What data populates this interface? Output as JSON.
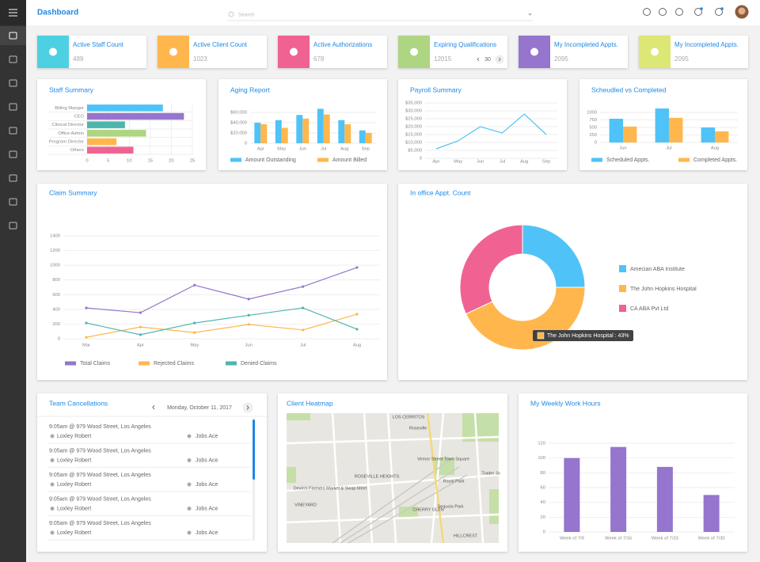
{
  "header": {
    "title": "Dashboard",
    "search_placeholder": "Search"
  },
  "kpis": [
    {
      "label": "Active Staff Count",
      "value": 489,
      "color": "#4dd0e1"
    },
    {
      "label": "Active Client Count",
      "value": 1023,
      "color": "#ffb74d"
    },
    {
      "label": "Active Authorizations",
      "value": 678,
      "color": "#f06292"
    },
    {
      "label": "Expiring Qualifications",
      "value": 12015,
      "color": "#aed581",
      "page": 30
    },
    {
      "label": "My Incompleted Appts.",
      "value": 2095,
      "color": "#9575cd"
    },
    {
      "label": "My Incompleted Appts.",
      "value": 2095,
      "color": "#dce775"
    }
  ],
  "chart_data": [
    {
      "type": "bar",
      "orientation": "horizontal",
      "title": "Staff Summary",
      "categories": [
        "Billing Manger",
        "CEO",
        "Clinical Director",
        "Office Admin",
        "Program Director",
        "Others"
      ],
      "values": [
        18,
        23,
        9,
        14,
        7,
        11
      ],
      "colors": [
        "#4fc3f7",
        "#9575cd",
        "#4db6ac",
        "#aed581",
        "#ffb74d",
        "#f06292"
      ],
      "xlim": [
        0,
        25
      ],
      "xticks": [
        0,
        5,
        10,
        15,
        20,
        25
      ],
      "grid": true
    },
    {
      "type": "bar",
      "title": "Aging Report",
      "categories": [
        "Apr",
        "May",
        "Jun",
        "Jul",
        "Aug",
        "Sep"
      ],
      "series": [
        {
          "name": "Amount Outstanding",
          "color": "#4fc3f7",
          "values": [
            40000,
            45000,
            55000,
            67000,
            45000,
            25000
          ]
        },
        {
          "name": "Amount Billed",
          "color": "#ffb74d",
          "values": [
            37000,
            30000,
            48000,
            56000,
            37000,
            20000
          ]
        }
      ],
      "ylim": [
        0,
        80000
      ],
      "yticks": [
        0,
        {
          "value": 20000,
          "label": "$20,000"
        },
        {
          "value": 40000,
          "label": "$40,000"
        },
        {
          "value": 60000,
          "label": "$60,000"
        }
      ],
      "grid": true
    },
    {
      "type": "line",
      "title": "Payroll Summary",
      "categories": [
        "Apr",
        "May",
        "Jun",
        "Jul",
        "Aug",
        "Sep"
      ],
      "values": [
        6000,
        11000,
        20000,
        16000,
        28000,
        15000
      ],
      "color": "#4fc3f7",
      "ylim": [
        0,
        35000
      ],
      "yticks": [
        0,
        {
          "value": 5000,
          "label": "$5,000"
        },
        {
          "value": 10000,
          "label": "$10,000"
        },
        {
          "value": 15000,
          "label": "$15,000"
        },
        {
          "value": 20000,
          "label": "$20,000"
        },
        {
          "value": 25000,
          "label": "$25,000"
        },
        {
          "value": 30000,
          "label": "$30,000"
        },
        {
          "value": 35000,
          "label": "$35,000"
        }
      ],
      "grid": true
    },
    {
      "type": "bar",
      "title": "Scheudled vs Completed",
      "categories": [
        "Jun",
        "Jul",
        "Aug"
      ],
      "series": [
        {
          "name": "Scheduled Appts.",
          "color": "#4fc3f7",
          "values": [
            790,
            1130,
            500
          ]
        },
        {
          "name": "Completed Appts.",
          "color": "#ffb74d",
          "values": [
            530,
            820,
            370
          ]
        }
      ],
      "ylim": [
        0,
        1250
      ],
      "yticks": [
        0,
        250,
        500,
        750,
        1000
      ],
      "grid": true
    },
    {
      "type": "line",
      "title": "Claim Summary",
      "categories": [
        "Mar",
        "Apr",
        "May",
        "Jun",
        "Jul",
        "Aug"
      ],
      "series": [
        {
          "name": "Total Claims",
          "color": "#9575cd",
          "values": [
            420,
            355,
            730,
            540,
            710,
            970
          ]
        },
        {
          "name": "Rejected Claims",
          "color": "#ffb74d",
          "values": [
            20,
            160,
            85,
            195,
            120,
            335
          ]
        },
        {
          "name": "Denied Claims",
          "color": "#4db6ac",
          "values": [
            215,
            55,
            215,
            320,
            420,
            130
          ]
        }
      ],
      "ylim": [
        0,
        1400
      ],
      "yticks": [
        0,
        200,
        400,
        600,
        800,
        1000,
        1200,
        1400
      ],
      "grid": true,
      "markers": true
    },
    {
      "type": "donut",
      "title": "In office Appt. Count",
      "categories": [
        "Amecian ABA Institute",
        "The John Hopkins Hospital",
        "CA ABA Pvt Ltd"
      ],
      "values": [
        25,
        43,
        32
      ],
      "colors": [
        "#4fc3f7",
        "#ffb74d",
        "#f06292"
      ],
      "tooltip": "The John Hopkins Hospital : 43%"
    },
    {
      "type": "bar",
      "title": "My Weekly Work Hours",
      "categories": [
        "Week of 7/9",
        "Week of 7/16",
        "Week of 7/23",
        "Week of 7/30"
      ],
      "values": [
        100,
        115,
        88,
        50
      ],
      "color": "#9575cd",
      "ylim": [
        0,
        120
      ],
      "yticks": [
        0,
        20,
        40,
        60,
        80,
        100,
        120
      ],
      "grid": true
    }
  ],
  "team_cancellations": {
    "title": "Team Cancellations",
    "date": "Monday, October 11, 2017",
    "items": [
      {
        "time": "9:05am @ 979 Wood Street, Los Angeles",
        "person": "Loxley Robert",
        "company": "Jobs Ace"
      },
      {
        "time": "9:05am @ 979 Wood Street, Los Angeles",
        "person": "Loxley Robert",
        "company": "Jobs Ace"
      },
      {
        "time": "9:05am @ 979 Wood Street, Los Angeles",
        "person": "Loxley Robert",
        "company": "Jobs Ace"
      },
      {
        "time": "9:05am @ 979 Wood Street, Los Angeles",
        "person": "Loxley Robert",
        "company": "Jobs Ace"
      },
      {
        "time": "9:05am @ 979 Wood Street, Los Angeles",
        "person": "Loxley Robert",
        "company": "Jobs Ace"
      }
    ]
  },
  "client_heatmap": {
    "title": "Client Heatmap",
    "labels": [
      "LOS CERRITOS",
      "Roseville",
      "ROSEVILLE HEIGHTS",
      "VINEYARD",
      "CHERRY GLEN",
      "HILLCREST",
      "Royal Park",
      "Sequoia Park",
      "Trader Jo",
      "Vernor Street Town Square",
      "Devin's Farmers Market & Swap Meet"
    ]
  }
}
